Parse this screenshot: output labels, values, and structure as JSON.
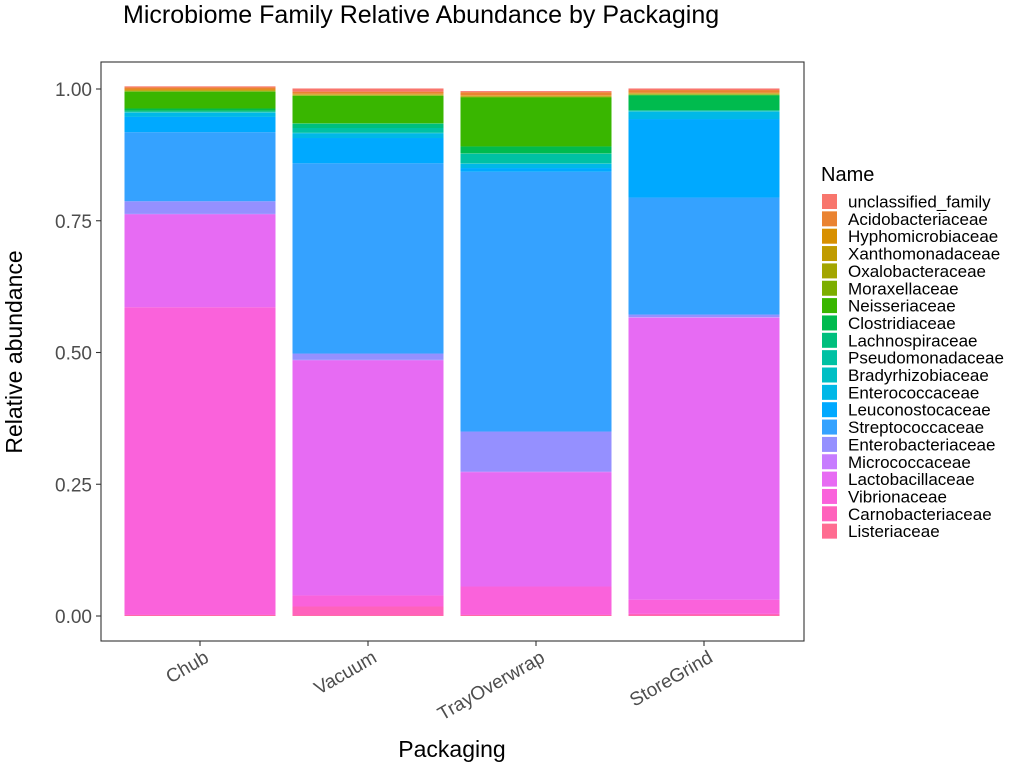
{
  "chart_data": {
    "type": "bar",
    "stacked": true,
    "title": "Microbiome Family Relative Abundance by Packaging",
    "xlabel": "Packaging",
    "ylabel": "Relative abundance",
    "ylim": [
      0,
      1
    ],
    "yticks": [
      "0.00",
      "0.25",
      "0.50",
      "0.75",
      "1.00"
    ],
    "grid": false,
    "legend_title": "Name",
    "legend_position": "right",
    "categories": [
      "Chub",
      "Vacuum",
      "TrayOverwrap",
      "StoreGrind"
    ],
    "series": [
      {
        "name": "unclassified_family",
        "color": "#F8766D",
        "values": [
          0.002,
          0.006,
          0.002,
          0.003
        ]
      },
      {
        "name": "Acidobacteriaceae",
        "color": "#EA8331",
        "values": [
          0.004,
          0.004,
          0.006,
          0.005
        ]
      },
      {
        "name": "Hyphomicrobiaceae",
        "color": "#D89000",
        "values": [
          0.001,
          0.001,
          0.001,
          0.001
        ]
      },
      {
        "name": "Xanthomonadaceae",
        "color": "#C09B00",
        "values": [
          0.001,
          0.001,
          0.001,
          0.001
        ]
      },
      {
        "name": "Oxalobacteraceae",
        "color": "#A3A500",
        "values": [
          0.001,
          0.001,
          0.001,
          0.001
        ]
      },
      {
        "name": "Moraxellaceae",
        "color": "#7CAE00",
        "values": [
          0.001,
          0.001,
          0.001,
          0.001
        ]
      },
      {
        "name": "Neisseriaceae",
        "color": "#39B600",
        "values": [
          0.032,
          0.052,
          0.093,
          0.001
        ]
      },
      {
        "name": "Clostridiaceae",
        "color": "#00BB4E",
        "values": [
          0.004,
          0.001,
          0.013,
          0.028
        ]
      },
      {
        "name": "Lachnospiraceae",
        "color": "#00BF7D",
        "values": [
          0.002,
          0.008,
          0.001,
          0.001
        ]
      },
      {
        "name": "Pseudomonadaceae",
        "color": "#00C1A3",
        "values": [
          0.001,
          0.009,
          0.018,
          0.001
        ]
      },
      {
        "name": "Bradyrhizobiaceae",
        "color": "#00BFC4",
        "values": [
          0.001,
          0.001,
          0.001,
          0.001
        ]
      },
      {
        "name": "Enterococcaceae",
        "color": "#00B8E7",
        "values": [
          0.008,
          0.009,
          0.008,
          0.014
        ]
      },
      {
        "name": "Leuconostocaceae",
        "color": "#00A9FF",
        "values": [
          0.029,
          0.048,
          0.007,
          0.149
        ]
      },
      {
        "name": "Streptococcaceae",
        "color": "#35A2FF",
        "values": [
          0.131,
          0.361,
          0.493,
          0.222
        ]
      },
      {
        "name": "Enterobacteriaceae",
        "color": "#9590FF",
        "values": [
          0.024,
          0.012,
          0.076,
          0.005
        ]
      },
      {
        "name": "Micrococcaceae",
        "color": "#C77CFF",
        "values": [
          0.001,
          0.001,
          0.001,
          0.001
        ]
      },
      {
        "name": "Lactobacillaceae",
        "color": "#E76BF3",
        "values": [
          0.176,
          0.446,
          0.217,
          0.535
        ]
      },
      {
        "name": "Vibrionaceae",
        "color": "#FA62DB",
        "values": [
          0.584,
          0.021,
          0.054,
          0.027
        ]
      },
      {
        "name": "Carnobacteriaceae",
        "color": "#FF62BC",
        "values": [
          0.001,
          0.017,
          0.001,
          0.003
        ]
      },
      {
        "name": "Listeriaceae",
        "color": "#FF6C91",
        "values": [
          0.001,
          0.001,
          0.001,
          0.001
        ]
      }
    ]
  }
}
